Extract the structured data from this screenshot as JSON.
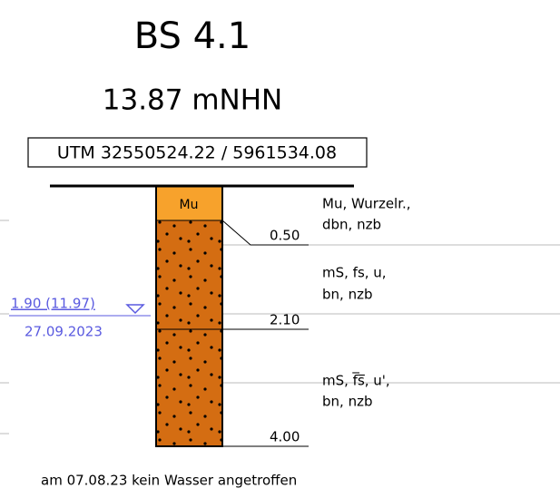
{
  "title": "BS 4.1",
  "elevation": "13.87 mNHN",
  "coordinates": "UTM 32550524.22 / 5961534.08",
  "layers": [
    {
      "code": "Mu",
      "description": [
        "Mu, Wurzelr.,",
        "dbn, nzb"
      ],
      "depth": "0.50"
    },
    {
      "description": [
        "mS, fs, u,",
        "bn, nzb"
      ],
      "depth": "2.10"
    },
    {
      "description": [
        "mS, f̅s̅, u',",
        "bn, nzb"
      ],
      "depth": "4.00"
    }
  ],
  "water": {
    "level": "1.90 (11.97)",
    "date": "27.09.2023"
  },
  "note": "am 07.08.23 kein Wasser angetroffen"
}
